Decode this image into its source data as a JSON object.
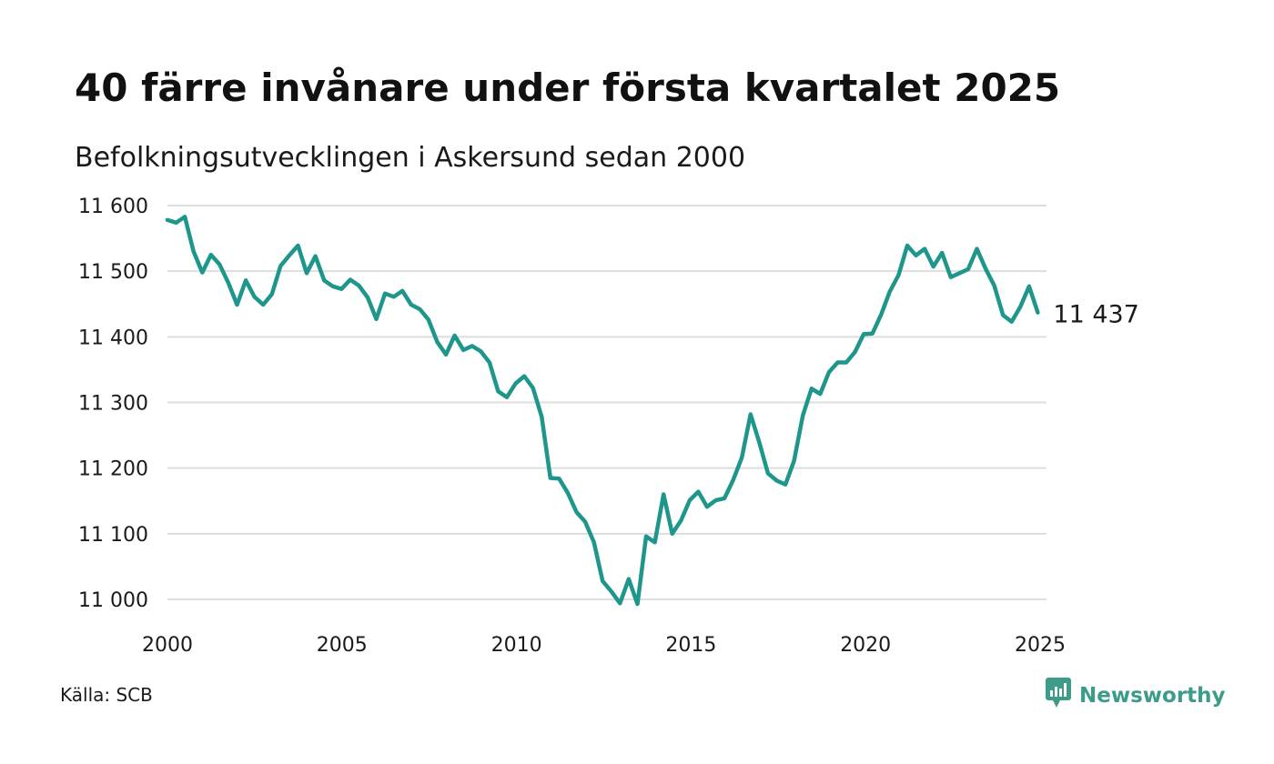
{
  "title": "40 färre invånare under första kvartalet 2025",
  "subtitle": "Befolkningsutvecklingen i Askersund sedan 2000",
  "source": "Källa: SCB",
  "brand": {
    "name": "Newsworthy",
    "icon": "newsworthy-logo-icon"
  },
  "colors": {
    "line": "#1f968b",
    "grid": "#dedede",
    "text": "#1a1a1a",
    "brand": "#3d9b8a"
  },
  "chart_data": {
    "type": "line",
    "title": "40 färre invånare under första kvartalet 2025",
    "subtitle": "Befolkningsutvecklingen i Askersund sedan 2000",
    "xlabel": "",
    "ylabel": "",
    "xlim": [
      2000,
      2025.25
    ],
    "ylim": [
      11000,
      11600
    ],
    "grid": true,
    "legend": "none",
    "end_label": "11 437",
    "x_ticks": [
      2000,
      2005,
      2010,
      2015,
      2020,
      2025
    ],
    "x_tick_labels": [
      "2000",
      "2005",
      "2010",
      "2015",
      "2020",
      "2025"
    ],
    "y_ticks": [
      11000,
      11100,
      11200,
      11300,
      11400,
      11500,
      11600
    ],
    "y_tick_labels": [
      "11 000",
      "11 100",
      "11 200",
      "11 300",
      "11 400",
      "11 500",
      "11 600"
    ],
    "series": [
      {
        "frequency": "quarterly",
        "start": "2000Q1",
        "values": [
          11578,
          11574,
          11583,
          11530,
          11498,
          11525,
          11510,
          11482,
          11449,
          11486,
          11461,
          11449,
          11465,
          11508,
          11524,
          11539,
          11497,
          11523,
          11486,
          11477,
          11473,
          11487,
          11478,
          11460,
          11427,
          11466,
          11461,
          11470,
          11449,
          11442,
          11426,
          11392,
          11373,
          11402,
          11380,
          11386,
          11378,
          11361,
          11317,
          11308,
          11329,
          11340,
          11322,
          11278,
          11185,
          11184,
          11162,
          11133,
          11118,
          11087,
          11028,
          11012,
          10994,
          11031,
          10993,
          11096,
          11087,
          11160,
          11100,
          11120,
          11151,
          11164,
          11141,
          11151,
          11154,
          11182,
          11216,
          11282,
          11239,
          11192,
          11181,
          11175,
          11211,
          11280,
          11321,
          11313,
          11346,
          11361,
          11361,
          11377,
          11404,
          11405,
          11434,
          11469,
          11494,
          11539,
          11524,
          11534,
          11507,
          11528,
          11491,
          11497,
          11503,
          11534,
          11504,
          11478,
          11433,
          11423,
          11446,
          11477,
          11437
        ]
      }
    ]
  }
}
